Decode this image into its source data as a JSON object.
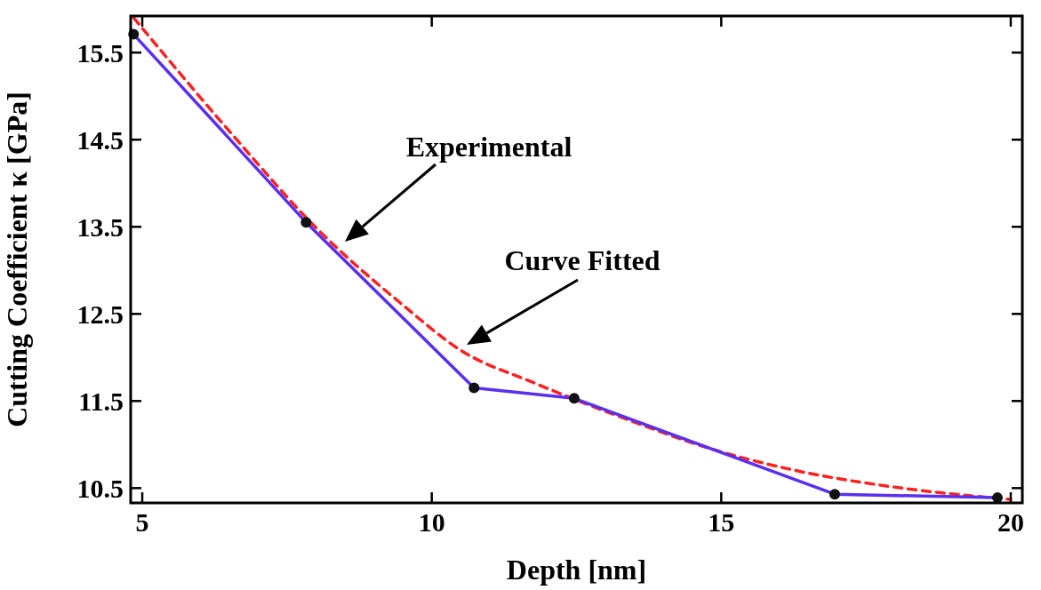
{
  "chart_data": {
    "type": "line",
    "xlabel": "Depth [nm]",
    "ylabel": "Cutting Coefficient κ [GPa]",
    "xlim": [
      4.8,
      20.2
    ],
    "ylim": [
      10.33,
      15.92
    ],
    "xticks": [
      5,
      10,
      15,
      20
    ],
    "yticks": [
      10.5,
      11.5,
      12.5,
      13.5,
      14.5,
      15.5
    ],
    "grid": false,
    "series": [
      {
        "color": "#5a2ff0",
        "marker": "circle",
        "line_style": "solid",
        "x": [
          4.85,
          7.83,
          10.73,
          12.46,
          16.96,
          19.77
        ],
        "values": [
          15.71,
          13.55,
          11.65,
          11.53,
          10.43,
          10.39
        ]
      },
      {
        "color": "#ff2020",
        "marker": "none",
        "line_style": "dashed",
        "x": [
          4.85,
          6.54,
          8.03,
          9.45,
          10.53,
          11.76,
          13.29,
          14.83,
          16.37,
          17.9,
          20.0
        ],
        "values": [
          15.9,
          14.57,
          13.47,
          12.63,
          12.07,
          11.71,
          11.31,
          10.95,
          10.69,
          10.52,
          10.37
        ]
      }
    ],
    "annotations": [
      "Experimental",
      "Curve Fitted"
    ]
  }
}
